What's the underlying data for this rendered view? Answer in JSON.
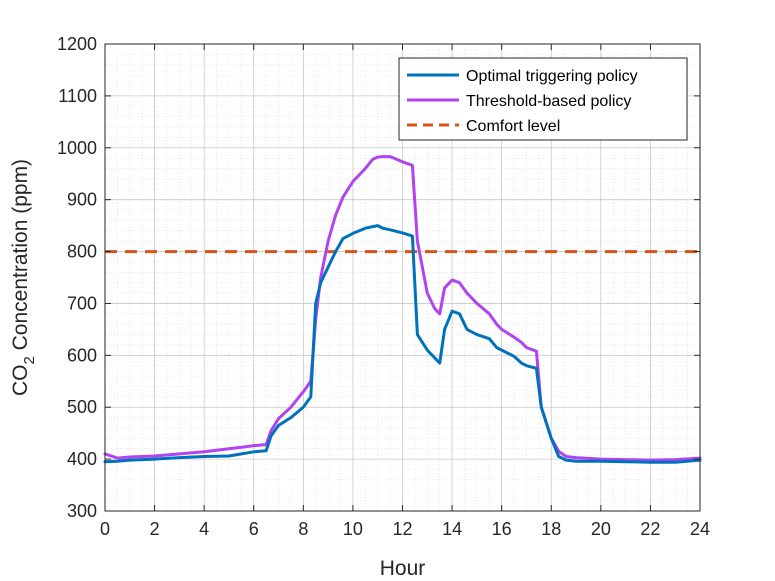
{
  "chart_data": {
    "type": "line",
    "title": "",
    "xlabel": "Hour",
    "ylabel_main": "CO",
    "ylabel_sub": "2",
    "ylabel_rest": " Concentration (ppm)",
    "xlim": [
      0,
      24
    ],
    "ylim": [
      300,
      1200
    ],
    "xticks": [
      0,
      2,
      4,
      6,
      8,
      10,
      12,
      14,
      16,
      18,
      20,
      22,
      24
    ],
    "yticks": [
      300,
      400,
      500,
      600,
      700,
      800,
      900,
      1000,
      1100,
      1200
    ],
    "grid": true,
    "minor_grid": true,
    "legend_position": "top-right",
    "series": [
      {
        "name": "Optimal triggering policy",
        "color": "#0072BD",
        "style": "solid",
        "x": [
          0,
          0.5,
          1,
          2,
          3,
          4,
          5,
          5.5,
          6,
          6.5,
          6.7,
          7,
          7.5,
          8,
          8.3,
          8.5,
          8.7,
          9,
          9.3,
          9.6,
          10,
          10.5,
          10.8,
          11,
          11.2,
          11.5,
          12,
          12.4,
          12.6,
          13,
          13.3,
          13.5,
          13.7,
          14,
          14.3,
          14.6,
          15,
          15.5,
          15.8,
          16,
          16.5,
          16.8,
          17,
          17.4,
          17.6,
          18,
          18.3,
          18.6,
          19,
          20,
          21,
          22,
          23,
          24
        ],
        "y": [
          395,
          396,
          398,
          400,
          403,
          405,
          406,
          410,
          414,
          416,
          445,
          465,
          480,
          500,
          520,
          700,
          740,
          770,
          800,
          825,
          835,
          845,
          848,
          850,
          845,
          842,
          836,
          830,
          640,
          610,
          595,
          585,
          650,
          685,
          680,
          650,
          640,
          632,
          615,
          610,
          598,
          585,
          580,
          575,
          500,
          440,
          405,
          398,
          396,
          396,
          395,
          394,
          394,
          398
        ]
      },
      {
        "name": "Threshold-based policy",
        "color": "#B143F0",
        "style": "solid",
        "x": [
          0,
          0.5,
          1,
          2,
          3,
          4,
          5,
          5.5,
          6,
          6.5,
          6.7,
          7,
          7.5,
          8,
          8.3,
          8.5,
          8.7,
          9,
          9.3,
          9.6,
          10,
          10.5,
          10.8,
          11,
          11.2,
          11.5,
          12,
          12.4,
          12.6,
          13,
          13.3,
          13.5,
          13.7,
          14,
          14.3,
          14.6,
          15,
          15.5,
          15.8,
          16,
          16.5,
          16.8,
          17,
          17.4,
          17.6,
          18,
          18.3,
          18.6,
          19,
          20,
          21,
          22,
          23,
          24
        ],
        "y": [
          410,
          402,
          404,
          406,
          410,
          414,
          420,
          423,
          426,
          428,
          455,
          478,
          500,
          530,
          550,
          670,
          750,
          820,
          870,
          905,
          935,
          960,
          978,
          982,
          983,
          983,
          973,
          966,
          820,
          720,
          690,
          680,
          730,
          745,
          740,
          720,
          700,
          680,
          660,
          650,
          635,
          625,
          615,
          608,
          500,
          440,
          415,
          405,
          403,
          400,
          399,
          398,
          399,
          402
        ]
      },
      {
        "name": "Comfort level",
        "color": "#D95319",
        "style": "dashed",
        "x": [
          0,
          24
        ],
        "y": [
          800,
          800
        ]
      }
    ]
  }
}
